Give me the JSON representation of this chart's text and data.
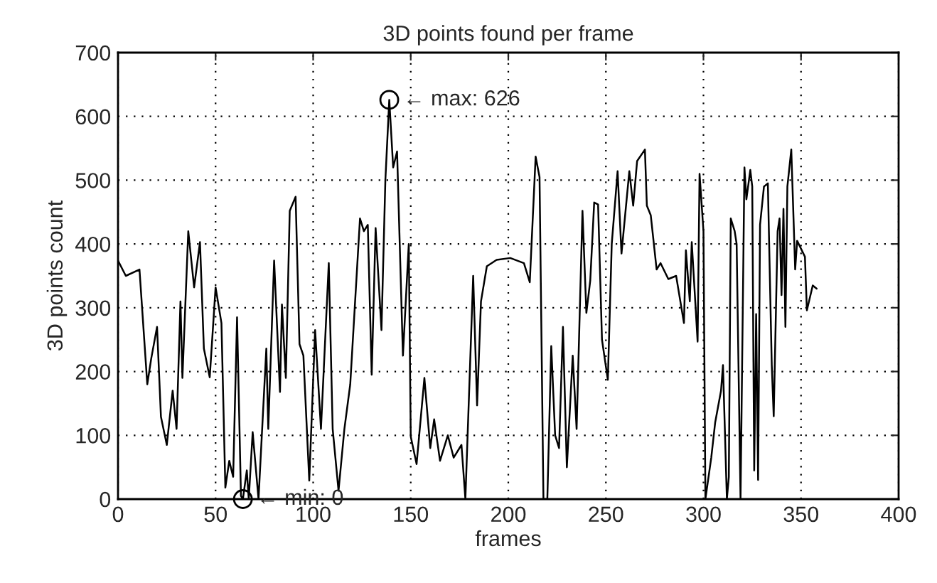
{
  "chart_data": {
    "type": "line",
    "title": "3D points found per frame",
    "xlabel": "frames",
    "ylabel": "3D points count",
    "xlim": [
      0,
      400
    ],
    "ylim": [
      0,
      700
    ],
    "xticks": [
      0,
      50,
      100,
      150,
      200,
      250,
      300,
      350,
      400
    ],
    "yticks": [
      0,
      100,
      200,
      300,
      400,
      500,
      600,
      700
    ],
    "grid": true,
    "legend": false,
    "marker": "none",
    "line_style": "solid",
    "series": [
      {
        "color": "#000000",
        "x": [
          0,
          4,
          11,
          15,
          17,
          20,
          22,
          25,
          28,
          30,
          32,
          33,
          36,
          39,
          42,
          44,
          47,
          50,
          53,
          55,
          57,
          59,
          61,
          63,
          64,
          66,
          67,
          69,
          72,
          76,
          77,
          80,
          83,
          84,
          86,
          88,
          91,
          93,
          95,
          98,
          101,
          104,
          108,
          110,
          113,
          116,
          119,
          124,
          126,
          128,
          130,
          132,
          135,
          137,
          139,
          141,
          143,
          146,
          149,
          150,
          153,
          157,
          160,
          162,
          165,
          169,
          172,
          176,
          178,
          182,
          184,
          186,
          189,
          194,
          201,
          208,
          211,
          214,
          216,
          218,
          220,
          222,
          224,
          226,
          228,
          230,
          233,
          235,
          238,
          240,
          242,
          244,
          246,
          248,
          251,
          253,
          256,
          258,
          262,
          264,
          266,
          270,
          271,
          273,
          276,
          278,
          282,
          286,
          290,
          291,
          293,
          294,
          297,
          298,
          300,
          301,
          304,
          306,
          309,
          310,
          312,
          313,
          314,
          316,
          317,
          319,
          321,
          322,
          324,
          325,
          326,
          327,
          328,
          329,
          331,
          333,
          335,
          336,
          338,
          339,
          340,
          341,
          342,
          343,
          345,
          347,
          348,
          352,
          353,
          356,
          358
        ],
        "values": [
          374,
          350,
          360,
          180,
          220,
          270,
          129,
          85,
          170,
          110,
          310,
          190,
          420,
          332,
          403,
          236,
          191,
          332,
          276,
          18,
          60,
          35,
          285,
          5,
          0,
          45,
          0,
          105,
          0,
          236,
          110,
          374,
          168,
          305,
          190,
          452,
          474,
          243,
          225,
          29,
          265,
          110,
          370,
          110,
          13,
          110,
          180,
          440,
          420,
          430,
          195,
          425,
          265,
          500,
          626,
          520,
          545,
          225,
          400,
          98,
          55,
          190,
          80,
          125,
          60,
          100,
          65,
          85,
          0,
          350,
          147,
          310,
          365,
          375,
          378,
          370,
          340,
          537,
          505,
          0,
          0,
          240,
          100,
          80,
          270,
          50,
          225,
          110,
          452,
          292,
          343,
          465,
          462,
          250,
          187,
          400,
          514,
          385,
          514,
          460,
          530,
          548,
          460,
          445,
          360,
          370,
          345,
          350,
          276,
          390,
          310,
          403,
          247,
          510,
          420,
          0,
          65,
          120,
          170,
          210,
          0,
          35,
          440,
          420,
          400,
          0,
          520,
          470,
          516,
          490,
          45,
          290,
          30,
          430,
          490,
          495,
          210,
          130,
          420,
          440,
          320,
          455,
          270,
          490,
          548,
          360,
          405,
          380,
          296,
          335,
          330
        ]
      }
    ],
    "annotations": [
      {
        "text": "← max: 626",
        "x": 139,
        "y": 626
      },
      {
        "text": "← min: 0",
        "x": 64,
        "y": 0
      }
    ]
  }
}
